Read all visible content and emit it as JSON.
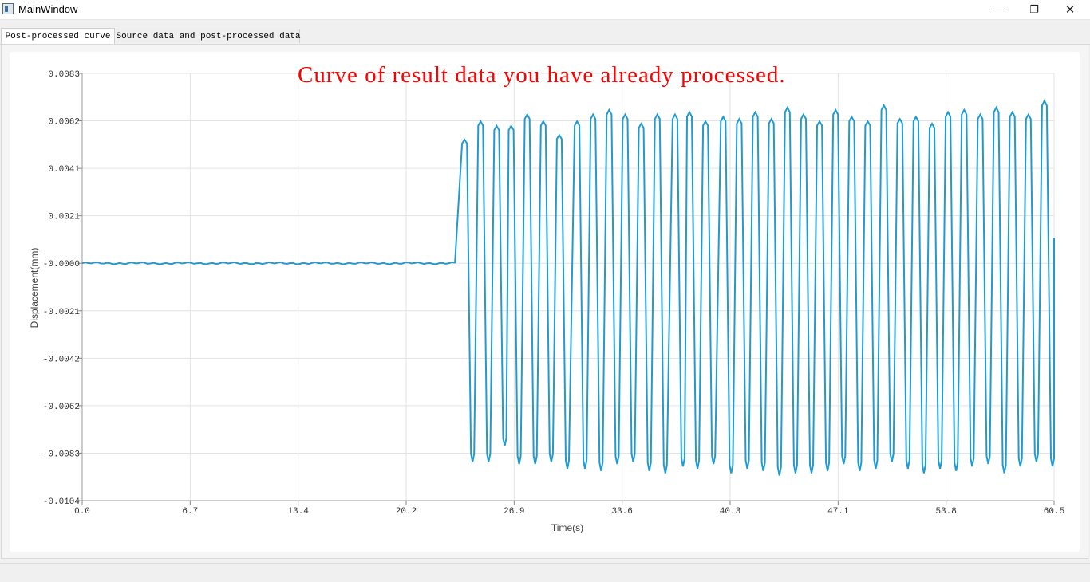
{
  "window": {
    "title": "MainWindow",
    "app_icon": "app-window-icon",
    "minimize_glyph": "—",
    "maximize_glyph": "❐",
    "close_glyph": "✕"
  },
  "tabs": [
    {
      "label": "Post-processed curve",
      "active": true
    },
    {
      "label": "Source data and post-processed data",
      "active": false
    }
  ],
  "chart_data": {
    "type": "line",
    "title": "Curve of result data you have already processed.",
    "title_color": "#ff0000",
    "xlabel": "Time(s)",
    "ylabel": "Displacement(mm)",
    "xlim": [
      0.0,
      60.5
    ],
    "ylim": [
      -0.0104,
      0.0083
    ],
    "grid": true,
    "x_ticks": [
      "0.0",
      "6.7",
      "13.4",
      "20.2",
      "26.9",
      "33.6",
      "40.3",
      "47.1",
      "53.8",
      "60.5"
    ],
    "y_ticks": [
      "0.0083",
      "0.0062",
      "0.0041",
      "0.0021",
      "-0.0000",
      "-0.0021",
      "-0.0042",
      "-0.0062",
      "-0.0083",
      "-0.0104"
    ],
    "series": [
      {
        "color": "#1f9bd1",
        "baseline_segment": {
          "x_start": 0.0,
          "x_end": 23.2,
          "y": -1e-05
        },
        "oscillation": {
          "x_start": 23.2,
          "x_end": 60.5,
          "peak_times": [
            23.8,
            24.8,
            25.8,
            26.7,
            27.7,
            28.7,
            29.7,
            30.8,
            31.8,
            32.8,
            33.8,
            34.8,
            35.8,
            36.9,
            37.8,
            38.8,
            39.9,
            40.9,
            41.9,
            42.9,
            43.9,
            44.9,
            45.9,
            46.9,
            47.9,
            48.9,
            49.9,
            50.9,
            51.9,
            52.9,
            53.9,
            54.9,
            55.9,
            56.9,
            57.9,
            58.9,
            59.9
          ],
          "peak_values": [
            0.0054,
            0.0062,
            0.006,
            0.006,
            0.0065,
            0.0062,
            0.0056,
            0.0062,
            0.0065,
            0.0067,
            0.0065,
            0.0061,
            0.0065,
            0.0065,
            0.0066,
            0.0062,
            0.0064,
            0.0063,
            0.0066,
            0.0063,
            0.0068,
            0.0065,
            0.0062,
            0.0067,
            0.0064,
            0.0062,
            0.0069,
            0.0063,
            0.0064,
            0.0061,
            0.0066,
            0.0067,
            0.0065,
            0.0068,
            0.0066,
            0.0065,
            0.0071
          ],
          "trough_values": [
            -0.0087,
            -0.0087,
            -0.008,
            -0.0088,
            -0.0088,
            -0.0087,
            -0.009,
            -0.009,
            -0.0091,
            -0.0088,
            -0.0087,
            -0.0091,
            -0.0092,
            -0.0089,
            -0.009,
            -0.0088,
            -0.0092,
            -0.009,
            -0.0091,
            -0.0093,
            -0.0092,
            -0.0092,
            -0.0091,
            -0.0088,
            -0.0091,
            -0.009,
            -0.0087,
            -0.009,
            -0.0092,
            -0.009,
            -0.0091,
            -0.0089,
            -0.0088,
            -0.0092,
            -0.0089,
            -0.0087,
            -0.0089
          ],
          "end_value": 0.0011
        }
      }
    ]
  }
}
